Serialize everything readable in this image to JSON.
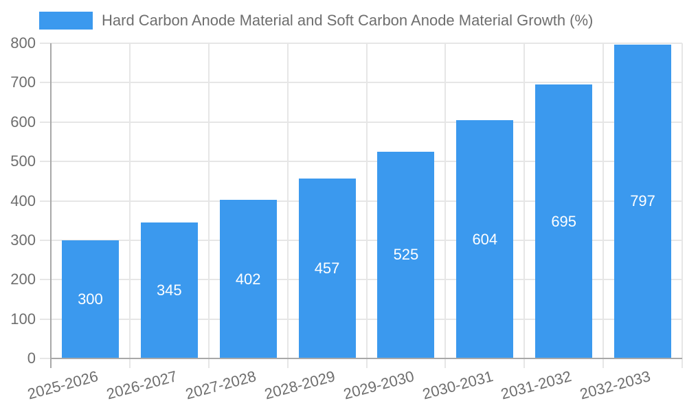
{
  "chart_data": {
    "type": "bar",
    "title": "Hard Carbon Anode Material and Soft Carbon Anode Material Growth (%)",
    "categories": [
      "2025-2026",
      "2026-2027",
      "2027-2028",
      "2028-2029",
      "2029-2030",
      "2030-2031",
      "2031-2032",
      "2032-2033"
    ],
    "values": [
      300,
      345,
      402,
      457,
      525,
      604,
      695,
      797
    ],
    "xlabel": "",
    "ylabel": "",
    "ylim": [
      0,
      800
    ],
    "ytick_step": 100,
    "grid": true,
    "legend_position": "top-left",
    "value_labels": "inside-center",
    "x_label_rotation_deg": -15,
    "colors": {
      "bar": "#3b99ee",
      "value_label": "#ffffff",
      "tick_label": "#6e6e6e",
      "title": "#6e6e6e",
      "grid": "#e6e6e6",
      "axis": "#a8a8a8"
    }
  }
}
